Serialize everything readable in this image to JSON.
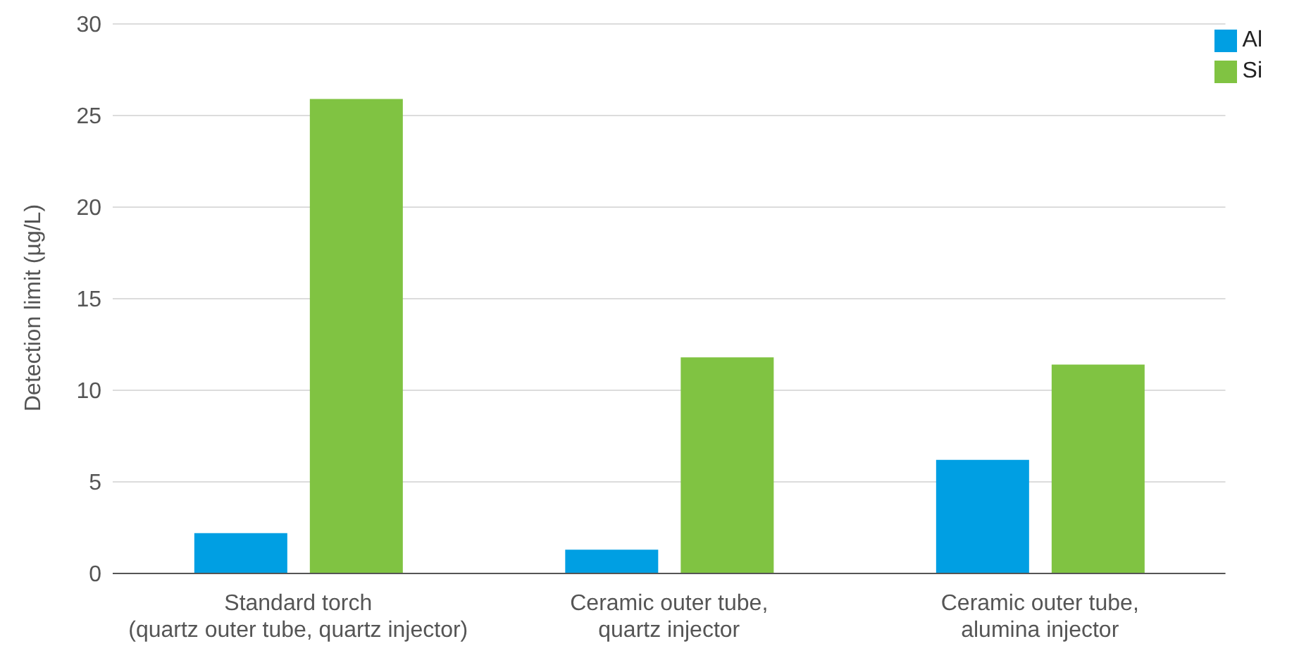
{
  "chart_data": {
    "type": "bar",
    "ylabel": "Detection limit (µg/L)",
    "categories": [
      "Standard torch\n(quartz outer tube, quartz injector)",
      "Ceramic outer tube,\nquartz injector",
      "Ceramic outer tube,\nalumina injector"
    ],
    "series": [
      {
        "name": "Al",
        "color": "#009fe3",
        "values": [
          2.2,
          1.3,
          6.2
        ]
      },
      {
        "name": "Si",
        "color": "#80c342",
        "values": [
          25.9,
          11.8,
          11.4
        ]
      }
    ],
    "ylim": [
      0,
      30
    ],
    "yticks": [
      0,
      5,
      10,
      15,
      20,
      25,
      30
    ],
    "grid": "y",
    "legend": "top right"
  }
}
